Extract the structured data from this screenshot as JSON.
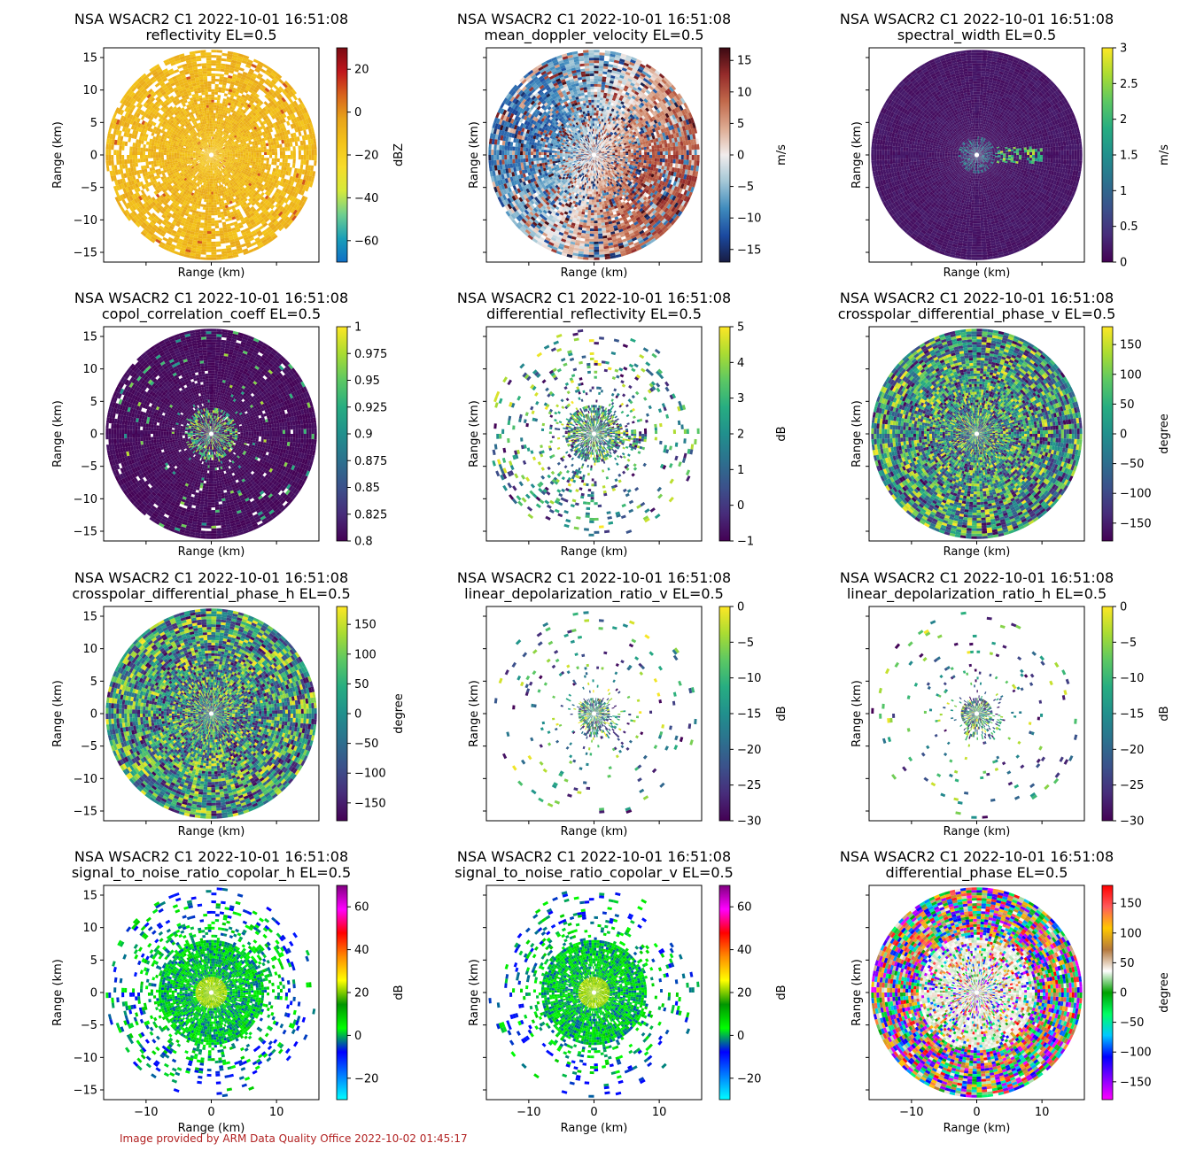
{
  "figure": {
    "footer": "Image provided by ARM Data Quality Office 2022-10-02 01:45:17",
    "colors": {
      "footer": "#b22222",
      "background": "#ffffff"
    }
  },
  "chart_data": [
    {
      "type": "heatmap",
      "title": "NSA WSACR2 C1 2022-10-01 16:51:08",
      "subtitle": "reflectivity  EL=0.5",
      "xlabel": "Range (km)",
      "ylabel": "Range (km)",
      "show_xtick_labels": false,
      "show_ytick_labels": true,
      "xlim": [
        -16.5,
        16.5
      ],
      "ylim": [
        -16.5,
        16.5
      ],
      "xticks": [
        -10,
        0,
        10
      ],
      "yticks": [
        -15,
        -10,
        -5,
        0,
        5,
        10,
        15
      ],
      "colorbar": {
        "label": "dBZ",
        "range": [
          -70,
          30
        ],
        "ticks": [
          -60,
          -40,
          -20,
          0,
          20
        ],
        "cmap": "homeyer"
      },
      "field": {
        "kind": "refl",
        "density": 0.8,
        "base": 0.6,
        "spread": 0.12
      }
    },
    {
      "type": "heatmap",
      "title": "NSA WSACR2 C1 2022-10-01 16:51:08",
      "subtitle": "mean_doppler_velocity  EL=0.5",
      "xlabel": "Range (km)",
      "ylabel": "Range (km)",
      "show_xtick_labels": false,
      "show_ytick_labels": false,
      "xlim": [
        -16.5,
        16.5
      ],
      "ylim": [
        -16.5,
        16.5
      ],
      "xticks": [
        -10,
        0,
        10
      ],
      "yticks": [
        -15,
        -10,
        -5,
        0,
        5,
        10,
        15
      ],
      "colorbar": {
        "label": "m/s",
        "range": [
          -17,
          17
        ],
        "ticks": [
          -15,
          -10,
          -5,
          0,
          5,
          10,
          15
        ],
        "cmap": "balance"
      },
      "field": {
        "kind": "vel",
        "density": 0.97,
        "base": 0.5,
        "spread": 0.45
      }
    },
    {
      "type": "heatmap",
      "title": "NSA WSACR2 C1 2022-10-01 16:51:08",
      "subtitle": "spectral_width  EL=0.5",
      "xlabel": "Range (km)",
      "ylabel": "Range (km)",
      "show_xtick_labels": false,
      "show_ytick_labels": false,
      "xlim": [
        -16.5,
        16.5
      ],
      "ylim": [
        -16.5,
        16.5
      ],
      "xticks": [
        -10,
        0,
        10
      ],
      "yticks": [
        -15,
        -10,
        -5,
        0,
        5,
        10,
        15
      ],
      "colorbar": {
        "label": "m/s",
        "range": [
          0,
          3
        ],
        "ticks": [
          0,
          0.5,
          1,
          1.5,
          2,
          2.5,
          3
        ],
        "cmap": "viridis"
      },
      "field": {
        "kind": "sw",
        "density": 1,
        "base": 0.03,
        "spread": 0.05
      }
    },
    {
      "type": "heatmap",
      "title": "NSA WSACR2 C1 2022-10-01 16:51:08",
      "subtitle": "copol_correlation_coeff  EL=0.5",
      "xlabel": "Range (km)",
      "ylabel": "Range (km)",
      "show_xtick_labels": false,
      "show_ytick_labels": true,
      "xlim": [
        -16.5,
        16.5
      ],
      "ylim": [
        -16.5,
        16.5
      ],
      "xticks": [
        -10,
        0,
        10
      ],
      "yticks": [
        -15,
        -10,
        -5,
        0,
        5,
        10,
        15
      ],
      "colorbar": {
        "label": "",
        "range": [
          0.8,
          1.0
        ],
        "ticks": [
          0.8,
          0.825,
          0.85,
          0.875,
          0.9,
          0.925,
          0.95,
          0.975,
          1.0
        ],
        "cmap": "viridis"
      },
      "field": {
        "kind": "rho",
        "density": 0.97,
        "base": 0.0,
        "spread": 0.05
      }
    },
    {
      "type": "heatmap",
      "title": "NSA WSACR2 C1 2022-10-01 16:51:08",
      "subtitle": "differential_reflectivity  EL=0.5",
      "xlabel": "Range (km)",
      "ylabel": "Range (km)",
      "show_xtick_labels": false,
      "show_ytick_labels": false,
      "xlim": [
        -16.5,
        16.5
      ],
      "ylim": [
        -16.5,
        16.5
      ],
      "xticks": [
        -10,
        0,
        10
      ],
      "yticks": [
        -15,
        -10,
        -5,
        0,
        5,
        10,
        15
      ],
      "colorbar": {
        "label": "dB",
        "range": [
          -1,
          5
        ],
        "ticks": [
          -1,
          0,
          1,
          2,
          3,
          4,
          5
        ],
        "cmap": "viridis"
      },
      "field": {
        "kind": "zdr",
        "density": 0.12,
        "base": 0.4,
        "spread": 0.4
      }
    },
    {
      "type": "heatmap",
      "title": "NSA WSACR2 C1 2022-10-01 16:51:08",
      "subtitle": "crosspolar_differential_phase_v  EL=0.5",
      "xlabel": "Range (km)",
      "ylabel": "Range (km)",
      "show_xtick_labels": false,
      "show_ytick_labels": false,
      "xlim": [
        -16.5,
        16.5
      ],
      "ylim": [
        -16.5,
        16.5
      ],
      "xticks": [
        -10,
        0,
        10
      ],
      "yticks": [
        -15,
        -10,
        -5,
        0,
        5,
        10,
        15
      ],
      "colorbar": {
        "label": "degree",
        "range": [
          -180,
          180
        ],
        "ticks": [
          -150,
          -100,
          -50,
          0,
          50,
          100,
          150
        ],
        "cmap": "viridis"
      },
      "field": {
        "kind": "phase",
        "density": 1,
        "base": 0.55,
        "spread": 0.5
      }
    },
    {
      "type": "heatmap",
      "title": "NSA WSACR2 C1 2022-10-01 16:51:08",
      "subtitle": "crosspolar_differential_phase_h  EL=0.5",
      "xlabel": "Range (km)",
      "ylabel": "Range (km)",
      "show_xtick_labels": false,
      "show_ytick_labels": true,
      "xlim": [
        -16.5,
        16.5
      ],
      "ylim": [
        -16.5,
        16.5
      ],
      "xticks": [
        -10,
        0,
        10
      ],
      "yticks": [
        -15,
        -10,
        -5,
        0,
        5,
        10,
        15
      ],
      "colorbar": {
        "label": "degree",
        "range": [
          -180,
          180
        ],
        "ticks": [
          -150,
          -100,
          -50,
          0,
          50,
          100,
          150
        ],
        "cmap": "viridis"
      },
      "field": {
        "kind": "phase",
        "density": 1,
        "base": 0.55,
        "spread": 0.5
      }
    },
    {
      "type": "heatmap",
      "title": "NSA WSACR2 C1 2022-10-01 16:51:08",
      "subtitle": "linear_depolarization_ratio_v  EL=0.5",
      "xlabel": "Range (km)",
      "ylabel": "Range (km)",
      "show_xtick_labels": false,
      "show_ytick_labels": false,
      "xlim": [
        -16.5,
        16.5
      ],
      "ylim": [
        -16.5,
        16.5
      ],
      "xticks": [
        -10,
        0,
        10
      ],
      "yticks": [
        -15,
        -10,
        -5,
        0,
        5,
        10,
        15
      ],
      "colorbar": {
        "label": "dB",
        "range": [
          -30,
          0
        ],
        "ticks": [
          -30,
          -25,
          -20,
          -15,
          -10,
          -5,
          0
        ],
        "cmap": "viridis"
      },
      "field": {
        "kind": "ldr",
        "density": 0.05,
        "base": 0.6,
        "spread": 0.4
      }
    },
    {
      "type": "heatmap",
      "title": "NSA WSACR2 C1 2022-10-01 16:51:08",
      "subtitle": "linear_depolarization_ratio_h  EL=0.5",
      "xlabel": "Range (km)",
      "ylabel": "Range (km)",
      "show_xtick_labels": false,
      "show_ytick_labels": false,
      "xlim": [
        -16.5,
        16.5
      ],
      "ylim": [
        -16.5,
        16.5
      ],
      "xticks": [
        -10,
        0,
        10
      ],
      "yticks": [
        -15,
        -10,
        -5,
        0,
        5,
        10,
        15
      ],
      "colorbar": {
        "label": "dB",
        "range": [
          -30,
          0
        ],
        "ticks": [
          -30,
          -25,
          -20,
          -15,
          -10,
          -5,
          0
        ],
        "cmap": "viridis"
      },
      "field": {
        "kind": "ldr",
        "density": 0.05,
        "base": 0.6,
        "spread": 0.4
      }
    },
    {
      "type": "heatmap",
      "title": "NSA WSACR2 C1 2022-10-01 16:51:08",
      "subtitle": "signal_to_noise_ratio_copolar_h  EL=0.5",
      "xlabel": "Range (km)",
      "ylabel": "Range (km)",
      "show_xtick_labels": true,
      "show_ytick_labels": true,
      "xlim": [
        -16.5,
        16.5
      ],
      "ylim": [
        -16.5,
        16.5
      ],
      "xticks": [
        -10,
        0,
        10
      ],
      "yticks": [
        -15,
        -10,
        -5,
        0,
        5,
        10,
        15
      ],
      "colorbar": {
        "label": "dB",
        "range": [
          -30,
          70
        ],
        "ticks": [
          -20,
          0,
          20,
          40,
          60
        ],
        "cmap": "snr"
      },
      "field": {
        "kind": "snr",
        "density": 0.55,
        "base": 0.3,
        "spread": 0.08
      }
    },
    {
      "type": "heatmap",
      "title": "NSA WSACR2 C1 2022-10-01 16:51:08",
      "subtitle": "signal_to_noise_ratio_copolar_v  EL=0.5",
      "xlabel": "Range (km)",
      "ylabel": "Range (km)",
      "show_xtick_labels": true,
      "show_ytick_labels": false,
      "xlim": [
        -16.5,
        16.5
      ],
      "ylim": [
        -16.5,
        16.5
      ],
      "xticks": [
        -10,
        0,
        10
      ],
      "yticks": [
        -15,
        -10,
        -5,
        0,
        5,
        10,
        15
      ],
      "colorbar": {
        "label": "dB",
        "range": [
          -30,
          70
        ],
        "ticks": [
          -20,
          0,
          20,
          40,
          60
        ],
        "cmap": "snr"
      },
      "field": {
        "kind": "snr",
        "density": 0.38,
        "base": 0.3,
        "spread": 0.08
      }
    },
    {
      "type": "heatmap",
      "title": "NSA WSACR2 C1 2022-10-01 16:51:08",
      "subtitle": "differential_phase  EL=0.5",
      "xlabel": "Range (km)",
      "ylabel": "Range (km)",
      "show_xtick_labels": true,
      "show_ytick_labels": false,
      "xlim": [
        -16.5,
        16.5
      ],
      "ylim": [
        -16.5,
        16.5
      ],
      "xticks": [
        -10,
        0,
        10
      ],
      "yticks": [
        -15,
        -10,
        -5,
        0,
        5,
        10,
        15
      ],
      "colorbar": {
        "label": "degree",
        "range": [
          -180,
          180
        ],
        "ticks": [
          -150,
          -100,
          -50,
          0,
          50,
          100,
          150
        ],
        "cmap": "phase"
      },
      "field": {
        "kind": "dphase",
        "density": 1,
        "base": 0.6,
        "spread": 0.12
      }
    }
  ]
}
